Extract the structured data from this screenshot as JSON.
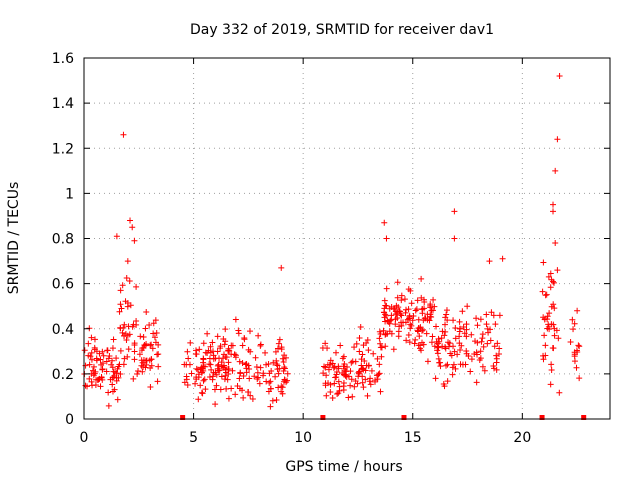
{
  "chart_data": {
    "type": "scatter",
    "title": "Day 332 of 2019, SRMTID for receiver dav1",
    "xlabel": "GPS time / hours",
    "ylabel": "SRMTID / TECUs",
    "xlim": [
      0,
      24
    ],
    "ylim": [
      0,
      1.6
    ],
    "xticks": [
      0,
      5,
      10,
      15,
      20
    ],
    "xtick_labels": [
      "0",
      "5",
      "10",
      "15",
      "20"
    ],
    "yticks": [
      0,
      0.2,
      0.4,
      0.6,
      0.8,
      1.0,
      1.2,
      1.4,
      1.6
    ],
    "ytick_labels": [
      "0",
      "0.2",
      "0.4",
      "0.6",
      "0.8",
      "1",
      "1.2",
      "1.4",
      "1.6"
    ],
    "grid": true,
    "series_color": "#ff0000",
    "marker": "plus",
    "segments": [
      {
        "x_start": 0.0,
        "x_end": 0.9,
        "y_base": 0.24,
        "y_spread": 0.16,
        "count": 45
      },
      {
        "x_start": 0.9,
        "x_end": 1.6,
        "y_base": 0.2,
        "y_spread": 0.14,
        "count": 30
      },
      {
        "x_start": 1.6,
        "x_end": 2.4,
        "y_base": 0.42,
        "y_spread": 0.26,
        "count": 40
      },
      {
        "x_start": 2.4,
        "x_end": 3.4,
        "y_base": 0.3,
        "y_spread": 0.14,
        "count": 45
      },
      {
        "x_start": 4.5,
        "x_end": 6.5,
        "y_base": 0.24,
        "y_spread": 0.13,
        "count": 95
      },
      {
        "x_start": 6.5,
        "x_end": 9.3,
        "y_base": 0.24,
        "y_spread": 0.14,
        "count": 110
      },
      {
        "x_start": 10.9,
        "x_end": 12.3,
        "y_base": 0.2,
        "y_spread": 0.11,
        "count": 60
      },
      {
        "x_start": 12.3,
        "x_end": 13.6,
        "y_base": 0.26,
        "y_spread": 0.12,
        "count": 55
      },
      {
        "x_start": 13.6,
        "x_end": 16.0,
        "y_base": 0.45,
        "y_spread": 0.15,
        "count": 120
      },
      {
        "x_start": 16.0,
        "x_end": 19.0,
        "y_base": 0.32,
        "y_spread": 0.16,
        "count": 110
      },
      {
        "x_start": 20.9,
        "x_end": 21.7,
        "y_base": 0.42,
        "y_spread": 0.25,
        "count": 40
      },
      {
        "x_start": 22.2,
        "x_end": 22.6,
        "y_base": 0.32,
        "y_spread": 0.1,
        "count": 14
      }
    ],
    "outliers": [
      {
        "x": 1.8,
        "y": 1.26
      },
      {
        "x": 2.1,
        "y": 0.88
      },
      {
        "x": 2.2,
        "y": 0.85
      },
      {
        "x": 2.3,
        "y": 0.79
      },
      {
        "x": 1.5,
        "y": 0.81
      },
      {
        "x": 2.0,
        "y": 0.7
      },
      {
        "x": 9.0,
        "y": 0.67
      },
      {
        "x": 13.7,
        "y": 0.87
      },
      {
        "x": 13.8,
        "y": 0.8
      },
      {
        "x": 16.9,
        "y": 0.92
      },
      {
        "x": 16.9,
        "y": 0.8
      },
      {
        "x": 18.5,
        "y": 0.7
      },
      {
        "x": 19.1,
        "y": 0.71
      },
      {
        "x": 21.4,
        "y": 0.95
      },
      {
        "x": 21.4,
        "y": 0.92
      },
      {
        "x": 21.5,
        "y": 1.1
      },
      {
        "x": 21.6,
        "y": 1.24
      },
      {
        "x": 21.7,
        "y": 1.52
      },
      {
        "x": 21.5,
        "y": 0.78
      },
      {
        "x": 21.6,
        "y": 0.66
      },
      {
        "x": 22.5,
        "y": 0.48
      }
    ],
    "gap_markers_x": [
      4.5,
      10.9,
      14.6,
      20.9,
      22.8
    ]
  }
}
